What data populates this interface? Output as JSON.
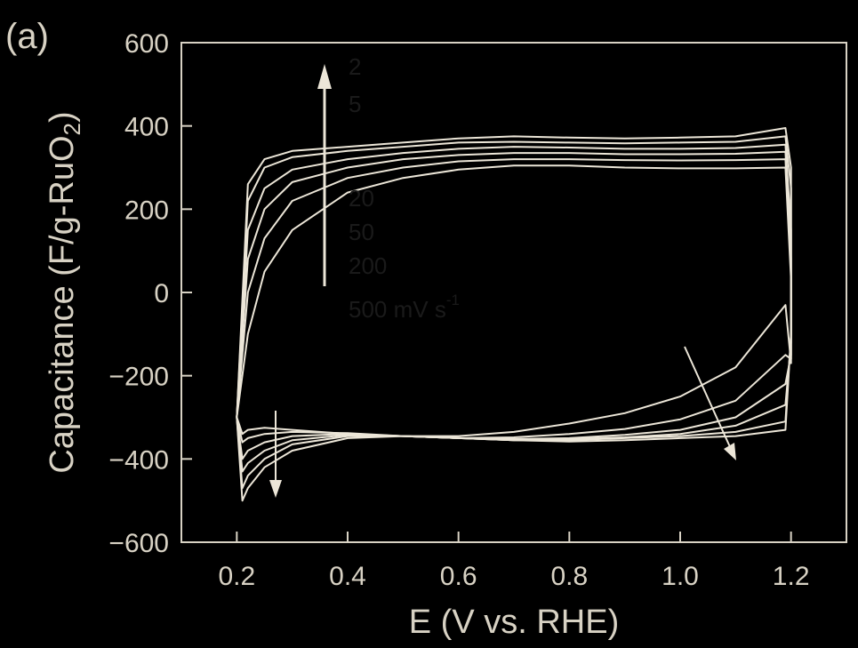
{
  "panel_label": "(a)",
  "legend": {
    "entries": [
      "2",
      "5",
      "20",
      "50",
      "200",
      "500 mV s"
    ],
    "superscript": "-1"
  },
  "chart_data": {
    "type": "line",
    "xlabel": "E (V vs. RHE)",
    "ylabel": "Capacitance (F/g-RuO",
    "ylabel_sub": "2",
    "ylabel_end": ")",
    "xlim": [
      0.1,
      1.3
    ],
    "ylim": [
      -600,
      600
    ],
    "xticks": [
      0.2,
      0.4,
      0.6,
      0.8,
      1.0,
      1.2
    ],
    "xtick_labels": [
      "0.2",
      "0.4",
      "0.6",
      "0.8",
      "1.0",
      "1.2"
    ],
    "yticks": [
      600,
      400,
      200,
      0,
      -200,
      -400,
      -600
    ],
    "ytick_labels": [
      "600",
      "400",
      "200",
      "0",
      "−200",
      "−400",
      "−600"
    ],
    "grid": false,
    "colors": {
      "curve": "#ece6d8",
      "axis": "#d8d2c4",
      "background": "#000000"
    },
    "series": [
      {
        "scan_rate": "2",
        "x": [
          0.2,
          0.22,
          0.25,
          0.3,
          0.4,
          0.5,
          0.6,
          0.7,
          0.8,
          0.9,
          1.0,
          1.1,
          1.19,
          1.2,
          1.2,
          1.19,
          1.1,
          1.0,
          0.9,
          0.8,
          0.7,
          0.6,
          0.5,
          0.4,
          0.3,
          0.25,
          0.22,
          0.21,
          0.2
        ],
        "y": [
          -300,
          260,
          320,
          340,
          350,
          360,
          370,
          375,
          372,
          370,
          372,
          375,
          395,
          300,
          -100,
          -330,
          -345,
          -350,
          -355,
          -358,
          -355,
          -350,
          -345,
          -340,
          -330,
          -325,
          -330,
          -340,
          -300
        ]
      },
      {
        "scan_rate": "5",
        "x": [
          0.2,
          0.22,
          0.25,
          0.3,
          0.4,
          0.5,
          0.6,
          0.7,
          0.8,
          0.9,
          1.0,
          1.1,
          1.19,
          1.2,
          1.2,
          1.19,
          1.1,
          1.0,
          0.9,
          0.8,
          0.7,
          0.6,
          0.5,
          0.4,
          0.3,
          0.25,
          0.22,
          0.21,
          0.2
        ],
        "y": [
          -300,
          220,
          300,
          325,
          340,
          350,
          360,
          362,
          360,
          358,
          360,
          362,
          375,
          250,
          -100,
          -310,
          -335,
          -345,
          -350,
          -355,
          -355,
          -350,
          -345,
          -338,
          -335,
          -340,
          -350,
          -360,
          -300
        ]
      },
      {
        "scan_rate": "20",
        "x": [
          0.2,
          0.22,
          0.25,
          0.3,
          0.4,
          0.5,
          0.6,
          0.7,
          0.8,
          0.9,
          1.0,
          1.1,
          1.19,
          1.2,
          1.2,
          1.19,
          1.1,
          1.0,
          0.9,
          0.8,
          0.7,
          0.6,
          0.5,
          0.4,
          0.3,
          0.25,
          0.22,
          0.21,
          0.2
        ],
        "y": [
          -300,
          150,
          250,
          295,
          320,
          335,
          345,
          350,
          348,
          345,
          345,
          347,
          355,
          150,
          -120,
          -270,
          -320,
          -340,
          -348,
          -352,
          -355,
          -350,
          -345,
          -340,
          -345,
          -360,
          -380,
          -400,
          -300
        ]
      },
      {
        "scan_rate": "50",
        "x": [
          0.2,
          0.22,
          0.25,
          0.3,
          0.4,
          0.5,
          0.6,
          0.7,
          0.8,
          0.9,
          1.0,
          1.1,
          1.19,
          1.2,
          1.2,
          1.19,
          1.1,
          1.0,
          0.9,
          0.8,
          0.7,
          0.6,
          0.5,
          0.4,
          0.3,
          0.25,
          0.22,
          0.21,
          0.2
        ],
        "y": [
          -300,
          80,
          200,
          265,
          300,
          320,
          330,
          335,
          335,
          332,
          332,
          333,
          338,
          80,
          -150,
          -220,
          -300,
          -330,
          -342,
          -350,
          -352,
          -350,
          -345,
          -342,
          -355,
          -380,
          -410,
          -430,
          -300
        ]
      },
      {
        "scan_rate": "200",
        "x": [
          0.2,
          0.22,
          0.25,
          0.3,
          0.4,
          0.5,
          0.6,
          0.7,
          0.8,
          0.9,
          1.0,
          1.1,
          1.19,
          1.2,
          1.2,
          1.19,
          1.1,
          1.0,
          0.9,
          0.8,
          0.7,
          0.6,
          0.5,
          0.4,
          0.3,
          0.25,
          0.22,
          0.21,
          0.2
        ],
        "y": [
          -300,
          0,
          130,
          220,
          275,
          300,
          315,
          320,
          320,
          318,
          317,
          318,
          320,
          50,
          -160,
          -150,
          -260,
          -305,
          -328,
          -340,
          -348,
          -350,
          -345,
          -345,
          -365,
          -400,
          -440,
          -470,
          -300
        ]
      },
      {
        "scan_rate": "500",
        "x": [
          0.2,
          0.22,
          0.25,
          0.3,
          0.4,
          0.5,
          0.6,
          0.7,
          0.8,
          0.9,
          1.0,
          1.1,
          1.19,
          1.2,
          1.2,
          1.19,
          1.1,
          1.0,
          0.9,
          0.8,
          0.7,
          0.6,
          0.5,
          0.4,
          0.3,
          0.25,
          0.22,
          0.21,
          0.2
        ],
        "y": [
          -300,
          -100,
          50,
          150,
          240,
          275,
          295,
          305,
          305,
          300,
          298,
          298,
          300,
          30,
          -170,
          -30,
          -180,
          -250,
          -290,
          -315,
          -335,
          -345,
          -345,
          -350,
          -380,
          -420,
          -470,
          -500,
          -300
        ]
      }
    ]
  }
}
